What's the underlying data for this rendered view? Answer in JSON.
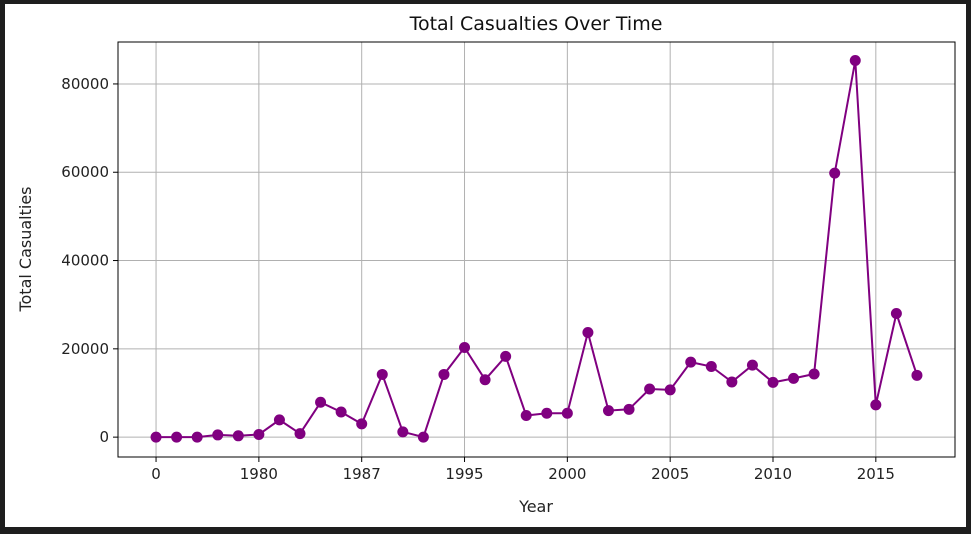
{
  "chart_data": {
    "type": "line",
    "title": "Total Casualties Over Time",
    "xlabel": "Year",
    "ylabel": "Total Casualties",
    "grid": true,
    "ylim": [
      -4500,
      89500
    ],
    "y_ticks": [
      0,
      20000,
      40000,
      60000,
      80000
    ],
    "x_tick_labels": [
      "0",
      "1980",
      "1987",
      "1995",
      "2000",
      "2005",
      "2010",
      "2015"
    ],
    "color": "#800080",
    "series": [
      {
        "values": [
          0,
          0,
          0,
          500,
          300,
          600,
          3900,
          800,
          7900,
          5700,
          3000,
          14200,
          1200,
          0,
          14200,
          20300,
          13000,
          18300,
          4900,
          5400,
          5400,
          23700,
          6000,
          6300,
          10900,
          10700,
          17000,
          16000,
          12500,
          16300,
          12400,
          13300,
          14300,
          59800,
          85300,
          7300,
          28000,
          14000
        ]
      }
    ]
  }
}
